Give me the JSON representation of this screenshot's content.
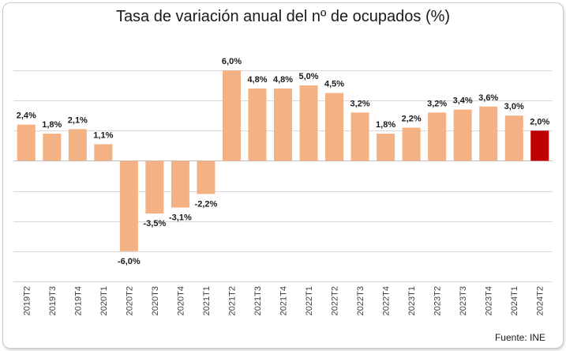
{
  "chart_data": {
    "type": "bar",
    "title": "Tasa de variación anual del nº de ocupados (%)",
    "source": "Fuente:  INE",
    "categories": [
      "2019T2",
      "2019T3",
      "2019T4",
      "2020T1",
      "2020T2",
      "2020T3",
      "2020T4",
      "2021T1",
      "2021T2",
      "2021T3",
      "2021T4",
      "2022T1",
      "2022T2",
      "2022T3",
      "2022T4",
      "2023T1",
      "2023T2",
      "2023T3",
      "2023T4",
      "2024T1",
      "2024T2"
    ],
    "values": [
      2.4,
      1.8,
      2.1,
      1.1,
      -6.0,
      -3.5,
      -3.1,
      -2.2,
      6.0,
      4.8,
      4.8,
      5.0,
      4.5,
      3.2,
      1.8,
      2.2,
      3.2,
      3.4,
      3.6,
      3.0,
      2.0
    ],
    "labels": [
      "2,4%",
      "1,8%",
      "2,1%",
      "1,1%",
      "-6,0%",
      "-3,5%",
      "-3,1%",
      "-2,2%",
      "6,0%",
      "4,8%",
      "4,8%",
      "5,0%",
      "4,5%",
      "3,2%",
      "1,8%",
      "2,2%",
      "3,2%",
      "3,4%",
      "3,6%",
      "3,0%",
      "2,0%"
    ],
    "ylim": [
      -8,
      6
    ],
    "gridlines": [
      -8,
      -6,
      -4,
      -2,
      0,
      2,
      4,
      6
    ],
    "grid": true,
    "colors": {
      "default": "#f4b183",
      "highlight": "#c00000"
    },
    "highlight_index": 20
  }
}
